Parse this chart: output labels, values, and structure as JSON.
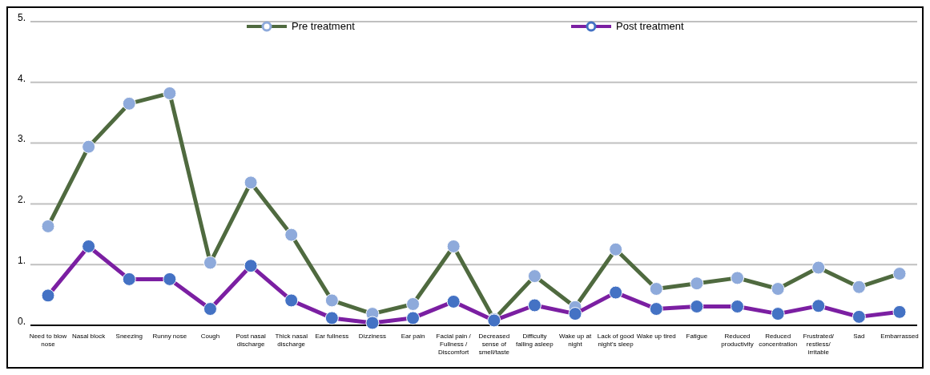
{
  "chart_data": {
    "type": "line",
    "categories": [
      "Need to blow nose",
      "Nasal block",
      "Sneezing",
      "Runny nose",
      "Cough",
      "Post nasal discharge",
      "Thick nasal discharge",
      "Ear fullness",
      "Dizziness",
      "Ear pain",
      "Facial pain / Fullness / Discomfort",
      "Decreased sense of smell/taste",
      "Difficulty falling asleep",
      "Wake up at night",
      "Lack of good night's sleep",
      "Wake up tired",
      "Fatigue",
      "Reduced productivity",
      "Reduced concentration",
      "Frustrated/ restless/ irritable",
      "Sad",
      "Embarrassed"
    ],
    "series": [
      {
        "name": "Pre treatment",
        "color": "#4f6a3f",
        "values": [
          1.63,
          2.94,
          3.65,
          3.82,
          1.03,
          2.35,
          1.49,
          0.41,
          0.19,
          0.35,
          1.3,
          0.1,
          0.81,
          0.3,
          1.25,
          0.6,
          0.69,
          0.78,
          0.6,
          0.95,
          0.63,
          0.85
        ]
      },
      {
        "name": "Post treatment",
        "color": "#7b1fa2",
        "values": [
          0.49,
          1.3,
          0.76,
          0.76,
          0.27,
          0.98,
          0.41,
          0.12,
          0.04,
          0.12,
          0.39,
          0.08,
          0.33,
          0.19,
          0.54,
          0.27,
          0.31,
          0.31,
          0.19,
          0.32,
          0.14,
          0.22
        ]
      }
    ],
    "ylim": [
      0,
      5
    ],
    "yticks": [
      {
        "value": 0,
        "label": "0."
      },
      {
        "value": 1,
        "label": "1."
      },
      {
        "value": 2,
        "label": "2."
      },
      {
        "value": 3,
        "label": "3."
      },
      {
        "value": 4,
        "label": "4."
      },
      {
        "value": 5,
        "label": "5."
      }
    ],
    "grid": "y",
    "legend": "top",
    "marker": "circle",
    "line_style": "solid"
  }
}
